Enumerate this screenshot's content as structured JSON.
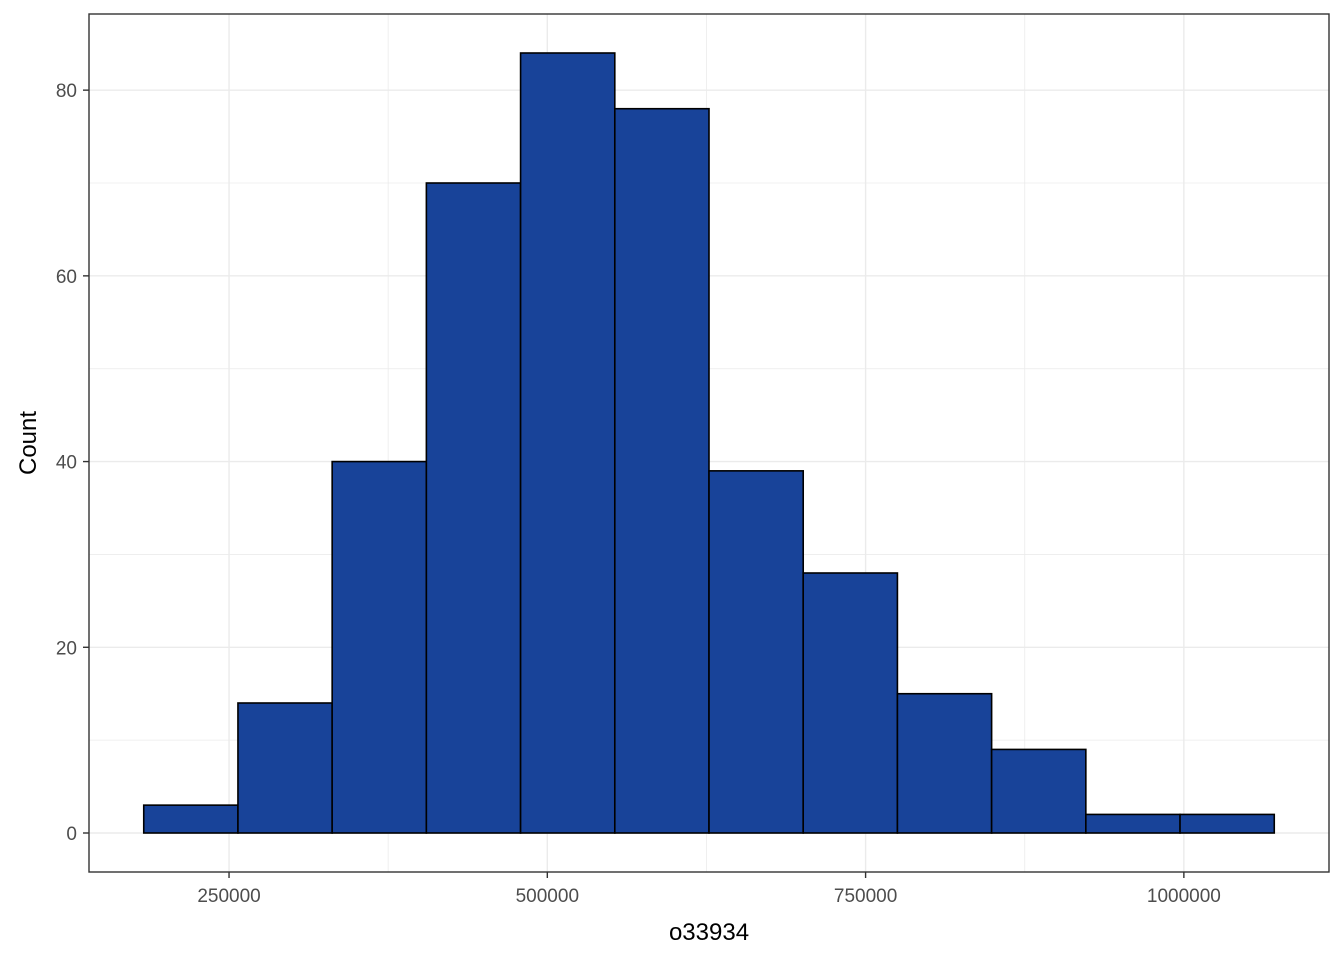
{
  "chart_data": {
    "type": "bar",
    "subtype": "histogram",
    "xlabel": "o33934",
    "ylabel": "Count",
    "bins": [
      {
        "x0": 183000,
        "x1": 257000,
        "count": 3
      },
      {
        "x0": 257000,
        "x1": 331000,
        "count": 14
      },
      {
        "x0": 331000,
        "x1": 405000,
        "count": 40
      },
      {
        "x0": 405000,
        "x1": 479000,
        "count": 70
      },
      {
        "x0": 479000,
        "x1": 553000,
        "count": 84
      },
      {
        "x0": 553000,
        "x1": 627000,
        "count": 78
      },
      {
        "x0": 627000,
        "x1": 701000,
        "count": 39
      },
      {
        "x0": 701000,
        "x1": 775000,
        "count": 28
      },
      {
        "x0": 775000,
        "x1": 849000,
        "count": 15
      },
      {
        "x0": 849000,
        "x1": 923000,
        "count": 9
      },
      {
        "x0": 923000,
        "x1": 997000,
        "count": 2
      },
      {
        "x0": 997000,
        "x1": 1071000,
        "count": 2
      }
    ],
    "xlim": [
      140000,
      1114000
    ],
    "ylim": [
      -4.2,
      88.2
    ],
    "x_ticks": [
      250000,
      500000,
      750000,
      1000000
    ],
    "x_tick_labels": [
      "250000",
      "500000",
      "750000",
      "1000000"
    ],
    "y_ticks": [
      0,
      20,
      40,
      60,
      80
    ],
    "y_tick_labels": [
      "0",
      "20",
      "40",
      "60",
      "80"
    ],
    "grid": true,
    "bar_fill": "#184399",
    "bar_stroke": "#000000",
    "grid_color": "#ebebeb",
    "panel_border": "#333333"
  }
}
